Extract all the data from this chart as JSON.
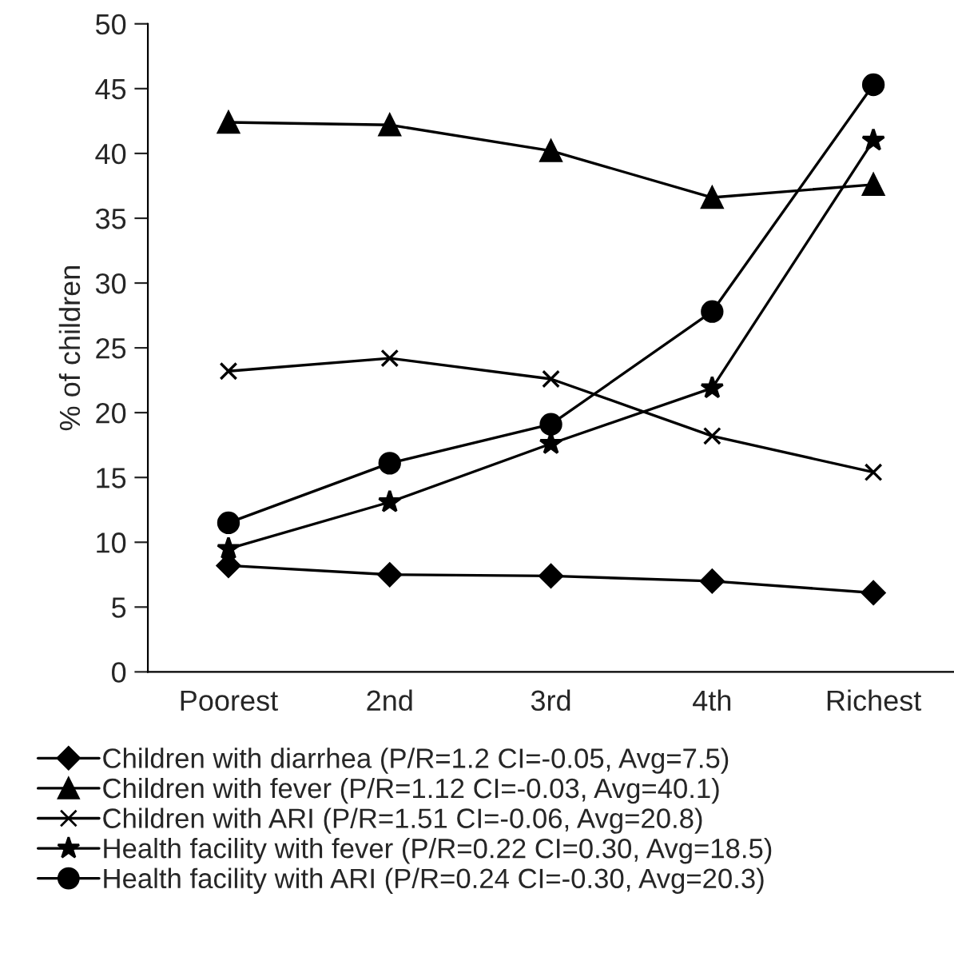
{
  "chart_data": {
    "type": "line",
    "ylabel": "% of children",
    "categories": [
      "Poorest",
      "2nd",
      "3rd",
      "4th",
      "Richest"
    ],
    "ylim": [
      0,
      50
    ],
    "yticks": [
      0,
      5,
      10,
      15,
      20,
      25,
      30,
      35,
      40,
      45,
      50
    ],
    "grid": false,
    "legend": "bottom",
    "line_style": "solid",
    "series": [
      {
        "name": "Children with diarrhea (P/R=1.2 CI=-0.05, Avg=7.5)",
        "color": "#000000",
        "marker": "diamond",
        "values": [
          8.2,
          7.5,
          7.4,
          7.0,
          6.1
        ]
      },
      {
        "name": "Children with fever (P/R=1.12 CI=-0.03, Avg=40.1)",
        "color": "#000000",
        "marker": "triangle",
        "values": [
          42.4,
          42.2,
          40.2,
          36.6,
          37.6
        ]
      },
      {
        "name": "Children with ARI (P/R=1.51 CI=-0.06, Avg=20.8)",
        "color": "#000000",
        "marker": "cross",
        "values": [
          23.2,
          24.2,
          22.6,
          18.2,
          15.4
        ]
      },
      {
        "name": "Health facility with fever (P/R=0.22 CI=0.30, Avg=18.5)",
        "color": "#000000",
        "marker": "star",
        "values": [
          9.5,
          13.1,
          17.6,
          21.9,
          41.0
        ]
      },
      {
        "name": "Health facility with ARI (P/R=0.24 CI=-0.30, Avg=20.3)",
        "color": "#000000",
        "marker": "circle",
        "values": [
          11.5,
          16.1,
          19.1,
          27.8,
          45.3
        ]
      }
    ]
  }
}
